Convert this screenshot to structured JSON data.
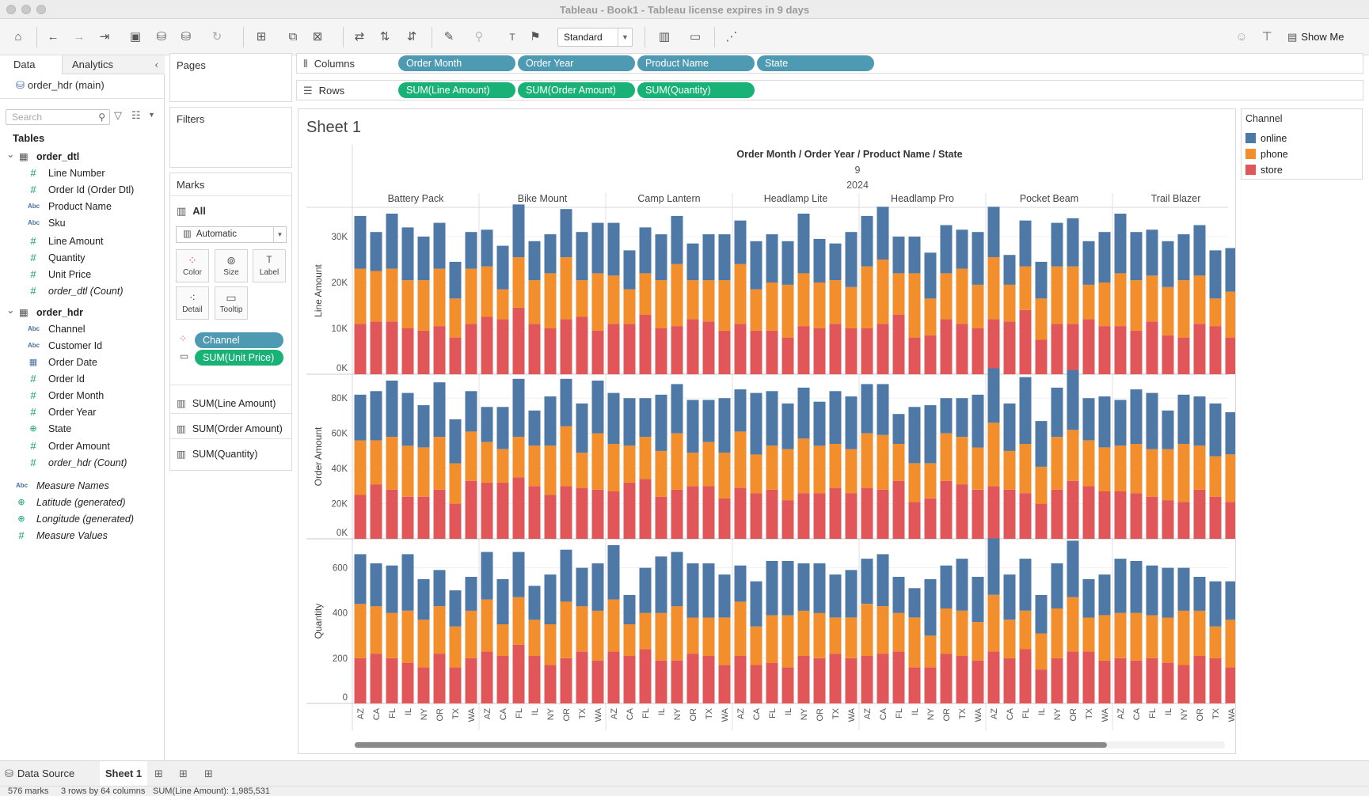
{
  "window": {
    "title": "Tableau - Book1 - Tableau license expires in 9 days"
  },
  "toolbar": {
    "fit_value": "Standard",
    "show_me_label": "Show Me",
    "icons": [
      "home-icon",
      "back-icon",
      "forward-icon",
      "redo-icon",
      "save-icon",
      "new-datasource-icon",
      "pause-datasource-icon",
      "refresh-icon",
      "new-worksheet-icon",
      "duplicate-icon",
      "clear-icon",
      "swap-icon",
      "sort-asc-icon",
      "sort-desc-icon",
      "highlight-icon",
      "group-icon",
      "label-icon",
      "fix-axes-icon",
      "presentation-icon",
      "share-icon",
      "ask-data-icon",
      "tooltip-pin-icon"
    ]
  },
  "data_pane": {
    "tabs": [
      "Data",
      "Analytics"
    ],
    "datasource": "order_hdr (main)",
    "search_placeholder": "Search",
    "tables_heading": "Tables",
    "tables": [
      {
        "name": "order_dtl",
        "fields": [
          {
            "label": "Line Number",
            "type": "num"
          },
          {
            "label": "Order Id (Order Dtl)",
            "type": "num"
          },
          {
            "label": "Product Name",
            "type": "abc"
          },
          {
            "label": "Sku",
            "type": "abc"
          },
          {
            "label": "Line Amount",
            "type": "num"
          },
          {
            "label": "Quantity",
            "type": "num"
          },
          {
            "label": "Unit Price",
            "type": "num"
          },
          {
            "label": "order_dtl (Count)",
            "type": "num",
            "italic": true
          }
        ]
      },
      {
        "name": "order_hdr",
        "fields": [
          {
            "label": "Channel",
            "type": "abc"
          },
          {
            "label": "Customer Id",
            "type": "abc"
          },
          {
            "label": "Order Date",
            "type": "date"
          },
          {
            "label": "Order Id",
            "type": "num"
          },
          {
            "label": "Order Month",
            "type": "num"
          },
          {
            "label": "Order Year",
            "type": "num"
          },
          {
            "label": "State",
            "type": "geo"
          },
          {
            "label": "Order Amount",
            "type": "num"
          },
          {
            "label": "order_hdr (Count)",
            "type": "num",
            "italic": true
          }
        ]
      }
    ],
    "extra_fields": [
      {
        "label": "Measure Names",
        "type": "abc"
      },
      {
        "label": "Latitude (generated)",
        "type": "geo"
      },
      {
        "label": "Longitude (generated)",
        "type": "geo"
      },
      {
        "label": "Measure Values",
        "type": "num"
      }
    ]
  },
  "cards": {
    "pages_title": "Pages",
    "filters_title": "Filters",
    "marks_title": "Marks",
    "marks_all": "All",
    "mark_type": "Automatic",
    "mark_buttons": [
      "Color",
      "Size",
      "Label",
      "Detail",
      "Tooltip"
    ],
    "mark_pills": [
      "Channel",
      "SUM(Unit Price)"
    ],
    "measures": [
      "SUM(Line Amount)",
      "SUM(Order Amount)",
      "SUM(Quantity)"
    ]
  },
  "shelves": {
    "columns_label": "Columns",
    "rows_label": "Rows",
    "columns": [
      "Order Month",
      "Order Year",
      "Product Name",
      "State"
    ],
    "rows": [
      "SUM(Line Amount)",
      "SUM(Order Amount)",
      "SUM(Quantity)"
    ]
  },
  "legend": {
    "title": "Channel",
    "items": [
      {
        "label": "online",
        "color": "#4e79a7"
      },
      {
        "label": "phone",
        "color": "#f28e2b"
      },
      {
        "label": "store",
        "color": "#e15759"
      }
    ]
  },
  "sheet": {
    "title": "Sheet 1"
  },
  "chart_data": {
    "type": "bar",
    "stacked": true,
    "header": "Order Month / Order Year / Product Name / State",
    "month": "9",
    "year": "2024",
    "products": [
      "Battery Pack",
      "Bike Mount",
      "Camp Lantern",
      "Headlamp Lite",
      "Headlamp Pro",
      "Pocket Beam",
      "Trail Blazer"
    ],
    "states": [
      "AZ",
      "CA",
      "FL",
      "IL",
      "NY",
      "OR",
      "TX",
      "WA"
    ],
    "series_names": [
      "store",
      "phone",
      "online"
    ],
    "panes": [
      {
        "measure": "Line Amount",
        "ylim": [
          0,
          35000
        ],
        "ticks": [
          0,
          10000,
          20000,
          30000
        ],
        "tick_labels": [
          "0K",
          "10K",
          "20K",
          "30K"
        ],
        "values": {
          "store": [
            [
              11000,
              11500,
              11500,
              10000,
              9500,
              10500,
              8000,
              11000
            ],
            [
              12500,
              12000,
              14500,
              11000,
              10000,
              12000,
              12500,
              9500
            ],
            [
              11000,
              11000,
              13000,
              10000,
              10500,
              12000,
              11500,
              9500
            ],
            [
              11000,
              9500,
              9500,
              8000,
              10500,
              10000,
              11000,
              10000
            ],
            [
              10000,
              11000,
              13000,
              8000,
              8500,
              12000,
              11000,
              10000
            ],
            [
              12000,
              11500,
              14000,
              7500,
              11000,
              11000,
              12000,
              10500
            ],
            [
              10500,
              9500,
              11500,
              8500,
              8000,
              11000,
              10500,
              8000
            ]
          ],
          "phone": [
            [
              12000,
              11000,
              11500,
              10500,
              11000,
              12500,
              8500,
              12000
            ],
            [
              11000,
              6500,
              11000,
              9500,
              12000,
              13500,
              8000,
              12500
            ],
            [
              10500,
              7500,
              9000,
              10500,
              13500,
              8500,
              9000,
              11000
            ],
            [
              13000,
              9000,
              10500,
              11500,
              11500,
              10000,
              9500,
              9000
            ],
            [
              13500,
              14000,
              9000,
              14000,
              8000,
              10000,
              12000,
              9500
            ],
            [
              13500,
              8000,
              9500,
              9000,
              12500,
              12500,
              7500,
              9500
            ],
            [
              11500,
              11000,
              10000,
              10500,
              12500,
              10500,
              6000,
              10000
            ]
          ],
          "online": [
            [
              11500,
              8500,
              12000,
              11500,
              9500,
              10000,
              8000,
              8000
            ],
            [
              8000,
              9500,
              11500,
              8500,
              8500,
              10500,
              10500,
              11000
            ],
            [
              11500,
              8500,
              10000,
              10000,
              10500,
              8000,
              10000,
              10000
            ],
            [
              9500,
              10500,
              10500,
              9500,
              13000,
              9500,
              8000,
              12000
            ],
            [
              11000,
              11500,
              8000,
              8000,
              10000,
              10500,
              8500,
              11500
            ],
            [
              11000,
              6500,
              10000,
              8000,
              9500,
              10500,
              9500,
              11000
            ],
            [
              13000,
              10500,
              10000,
              10000,
              10000,
              11000,
              10500,
              9500
            ]
          ]
        }
      },
      {
        "measure": "Order Amount",
        "ylim": [
          0,
          90000
        ],
        "ticks": [
          0,
          20000,
          40000,
          60000,
          80000
        ],
        "tick_labels": [
          "0K",
          "20K",
          "40K",
          "60K",
          "80K"
        ],
        "values": {
          "store": [
            [
              25000,
              31000,
              28000,
              24000,
              24000,
              28000,
              20000,
              33000
            ],
            [
              32000,
              32000,
              35000,
              30000,
              25000,
              30000,
              29000,
              28000
            ],
            [
              27000,
              32000,
              34000,
              24000,
              28000,
              30000,
              30000,
              23000
            ],
            [
              29000,
              26000,
              28000,
              22000,
              26000,
              26000,
              29000,
              26000
            ],
            [
              29000,
              28000,
              33000,
              21000,
              23000,
              33000,
              31000,
              28000
            ],
            [
              30000,
              28000,
              26000,
              20000,
              28000,
              33000,
              30000,
              27000
            ],
            [
              27000,
              26000,
              24000,
              22000,
              21000,
              28000,
              24000,
              21000
            ]
          ],
          "phone": [
            [
              31000,
              25000,
              30000,
              29000,
              28000,
              30000,
              23000,
              28000
            ],
            [
              23000,
              19000,
              23000,
              23000,
              28000,
              34000,
              20000,
              32000
            ],
            [
              27000,
              21000,
              24000,
              26000,
              32000,
              19000,
              25000,
              26000
            ],
            [
              32000,
              22000,
              25000,
              29000,
              31000,
              27000,
              25000,
              25000
            ],
            [
              31000,
              31000,
              21000,
              22000,
              20000,
              27000,
              27000,
              24000
            ],
            [
              36000,
              22000,
              28000,
              21000,
              30000,
              29000,
              26000,
              25000
            ],
            [
              26000,
              28000,
              27000,
              29000,
              33000,
              25000,
              23000,
              27000
            ]
          ],
          "online": [
            [
              26000,
              28000,
              32000,
              30000,
              24000,
              31000,
              25000,
              23000
            ],
            [
              20000,
              24000,
              33000,
              20000,
              28000,
              27000,
              28000,
              30000
            ],
            [
              29000,
              27000,
              22000,
              32000,
              28000,
              30000,
              24000,
              31000
            ],
            [
              24000,
              35000,
              31000,
              26000,
              29000,
              25000,
              30000,
              30000
            ],
            [
              28000,
              29000,
              17000,
              32000,
              33000,
              20000,
              22000,
              30000
            ],
            [
              31000,
              27000,
              38000,
              26000,
              28000,
              34000,
              24000,
              29000
            ],
            [
              26000,
              31000,
              32000,
              22000,
              28000,
              28000,
              30000,
              24000
            ]
          ]
        }
      },
      {
        "measure": "Quantity",
        "ylim": [
          0,
          700
        ],
        "ticks": [
          0,
          200,
          400,
          600
        ],
        "tick_labels": [
          "0",
          "200",
          "400",
          "600"
        ],
        "values": {
          "store": [
            [
              200,
              220,
              200,
              180,
              160,
              220,
              160,
              200
            ],
            [
              230,
              210,
              260,
              210,
              170,
              200,
              230,
              190
            ],
            [
              230,
              210,
              240,
              190,
              190,
              220,
              210,
              170
            ],
            [
              210,
              170,
              180,
              160,
              210,
              200,
              220,
              200
            ],
            [
              210,
              220,
              230,
              160,
              160,
              220,
              210,
              190
            ],
            [
              230,
              200,
              240,
              150,
              200,
              230,
              230,
              190
            ],
            [
              200,
              190,
              200,
              180,
              170,
              210,
              200,
              160
            ]
          ],
          "phone": [
            [
              240,
              210,
              200,
              230,
              210,
              210,
              180,
              210
            ],
            [
              230,
              140,
              210,
              160,
              180,
              250,
              200,
              220
            ],
            [
              230,
              140,
              160,
              210,
              240,
              160,
              170,
              210
            ],
            [
              240,
              170,
              210,
              230,
              200,
              200,
              160,
              180
            ],
            [
              230,
              210,
              170,
              220,
              140,
              200,
              200,
              170
            ],
            [
              250,
              170,
              170,
              160,
              220,
              240,
              150,
              200
            ],
            [
              200,
              210,
              190,
              200,
              240,
              200,
              140,
              210
            ]
          ],
          "online": [
            [
              220,
              190,
              210,
              250,
              180,
              160,
              160,
              150
            ],
            [
              210,
              200,
              200,
              150,
              220,
              230,
              170,
              210
            ],
            [
              240,
              130,
              200,
              250,
              240,
              240,
              240,
              190
            ],
            [
              160,
              200,
              240,
              240,
              210,
              220,
              190,
              210
            ],
            [
              200,
              230,
              160,
              130,
              250,
              190,
              230,
              200
            ],
            [
              250,
              200,
              230,
              170,
              200,
              250,
              170,
              180
            ],
            [
              240,
              230,
              220,
              220,
              190,
              150,
              200,
              170
            ]
          ]
        }
      }
    ],
    "partial_state_trailing": "AZ"
  },
  "tabs": {
    "data_source": "Data Source",
    "sheet1": "Sheet 1"
  },
  "status": {
    "marks": "576 marks",
    "dims": "3 rows by 64 columns",
    "sum": "SUM(Line Amount): 1,985,531"
  }
}
